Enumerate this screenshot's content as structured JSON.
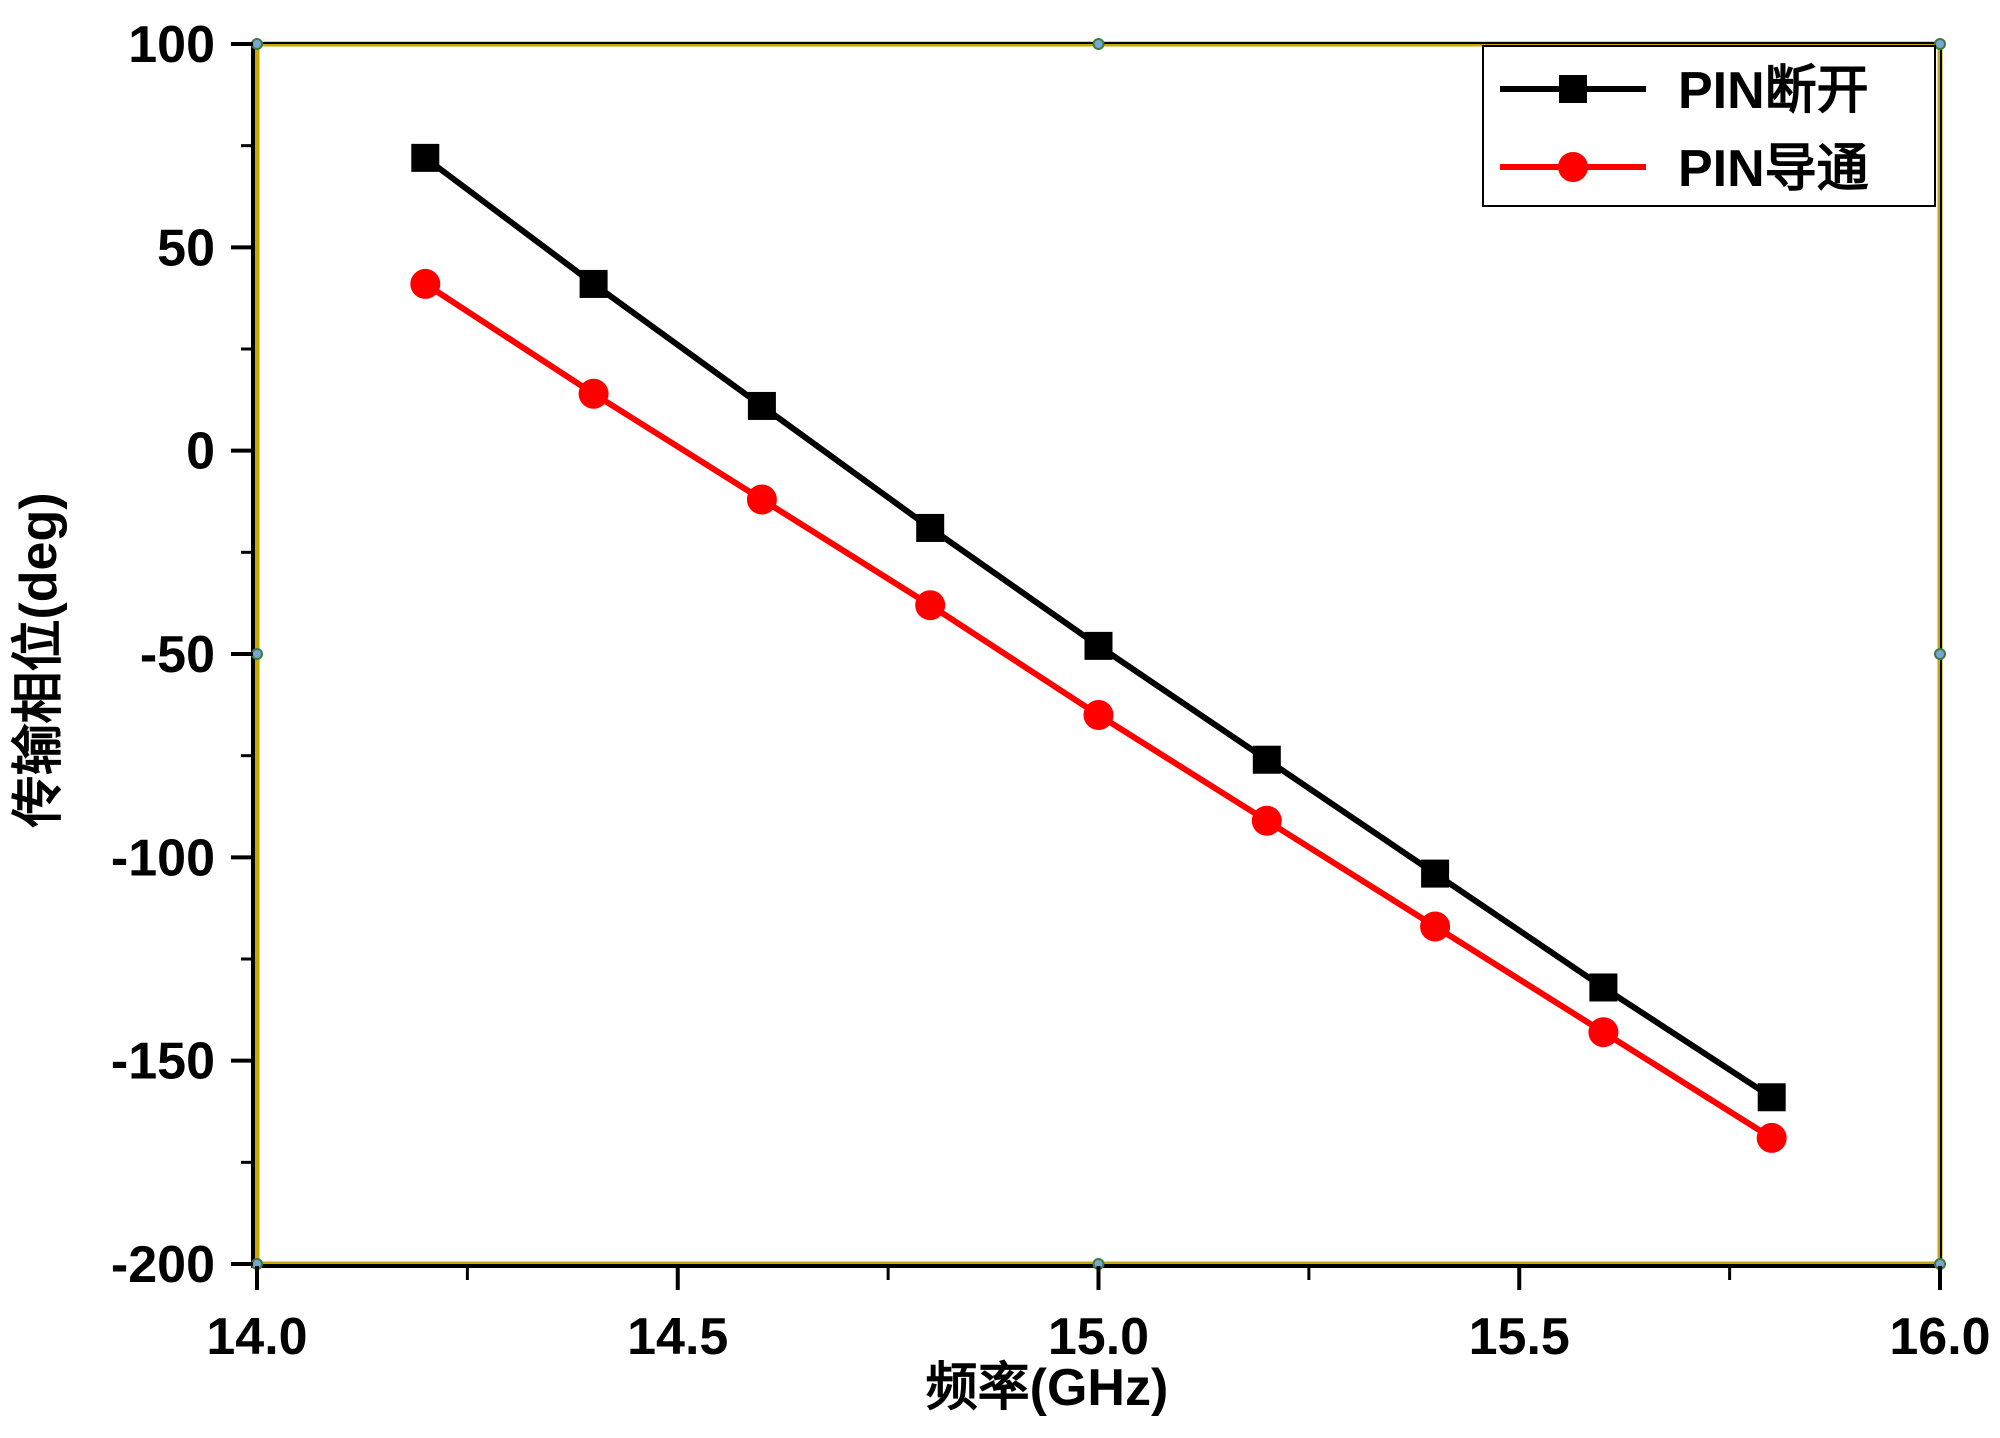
{
  "chart_data": {
    "type": "line",
    "title": "",
    "xlabel": "频率(GHz)",
    "ylabel": "传输相位(deg)",
    "xlim": [
      14.0,
      16.0
    ],
    "ylim": [
      -200,
      100
    ],
    "xticks": [
      14.0,
      14.5,
      15.0,
      15.5,
      16.0
    ],
    "xtick_labels": [
      "14.0",
      "14.5",
      "15.0",
      "15.5",
      "16.0"
    ],
    "yticks": [
      -200,
      -150,
      -100,
      -50,
      0,
      50,
      100
    ],
    "ytick_labels": [
      "-200",
      "-150",
      "-100",
      "-50",
      "0",
      "50",
      "100"
    ],
    "x": [
      14.2,
      14.4,
      14.6,
      14.8,
      15.0,
      15.2,
      15.4,
      15.6,
      15.8
    ],
    "series": [
      {
        "name": "PIN断开",
        "marker": "square",
        "color": "#000000",
        "values": [
          72,
          41,
          11,
          -19,
          -48,
          -76,
          -104,
          -132,
          -159
        ]
      },
      {
        "name": "PIN导通",
        "marker": "circle",
        "color": "#ff0000",
        "values": [
          41,
          14,
          -12,
          -38,
          -65,
          -91,
          -117,
          -143,
          -169
        ]
      }
    ],
    "grid": false,
    "legend_position": "top-right",
    "frame_color": "#c8a800"
  }
}
